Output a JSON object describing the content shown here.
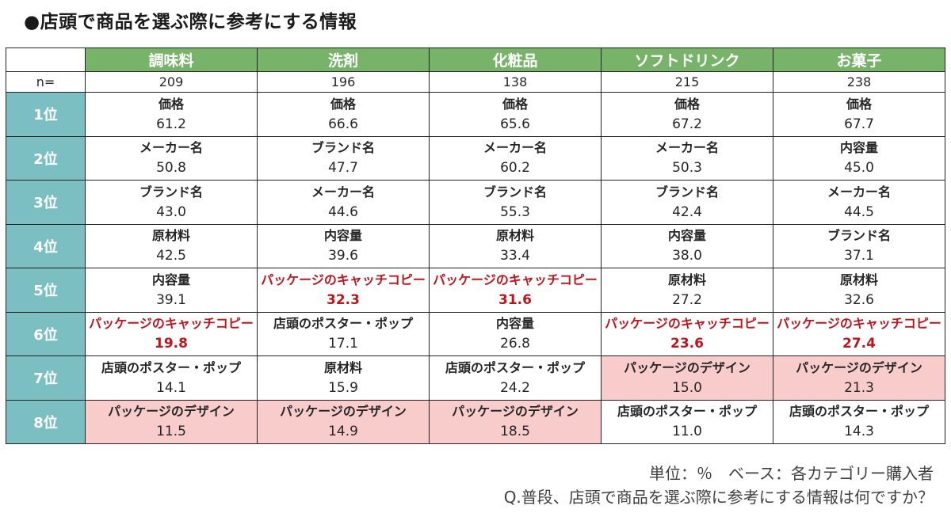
{
  "title": "●店頭で商品を選ぶ際に参考にする情報",
  "notes": {
    "unit": "単位：％　ベース：各カテゴリー購入者",
    "question": "Q.普段、店頭で商品を選ぶ際に参考にする情報は何ですか？"
  },
  "colors": {
    "header_green": "#78b36a",
    "rank_teal": "#7cbfc3",
    "highlight_red": "#c0141d",
    "highlight_pink": "#f9cccc"
  },
  "chart_data": {
    "type": "table",
    "n_label": "n=",
    "columns": [
      {
        "name": "調味料",
        "n": "209",
        "ranks": [
          {
            "item": "価格",
            "value": "61.2"
          },
          {
            "item": "メーカー名",
            "value": "50.8"
          },
          {
            "item": "ブランド名",
            "value": "43.0"
          },
          {
            "item": "原材料",
            "value": "42.5"
          },
          {
            "item": "内容量",
            "value": "39.1"
          },
          {
            "item": "パッケージのキャッチコピー",
            "value": "19.8",
            "style": "red"
          },
          {
            "item": "店頭のポスター・ポップ",
            "value": "14.1"
          },
          {
            "item": "パッケージのデザイン",
            "value": "11.5",
            "style": "pink"
          }
        ]
      },
      {
        "name": "洗剤",
        "n": "196",
        "ranks": [
          {
            "item": "価格",
            "value": "66.6"
          },
          {
            "item": "ブランド名",
            "value": "47.7"
          },
          {
            "item": "メーカー名",
            "value": "44.6"
          },
          {
            "item": "内容量",
            "value": "39.6"
          },
          {
            "item": "パッケージのキャッチコピー",
            "value": "32.3",
            "style": "red"
          },
          {
            "item": "店頭のポスター・ポップ",
            "value": "17.1"
          },
          {
            "item": "原材料",
            "value": "15.9"
          },
          {
            "item": "パッケージのデザイン",
            "value": "14.9",
            "style": "pink"
          }
        ]
      },
      {
        "name": "化粧品",
        "n": "138",
        "ranks": [
          {
            "item": "価格",
            "value": "65.6"
          },
          {
            "item": "メーカー名",
            "value": "60.2"
          },
          {
            "item": "ブランド名",
            "value": "55.3"
          },
          {
            "item": "原材料",
            "value": "33.4"
          },
          {
            "item": "パッケージのキャッチコピー",
            "value": "31.6",
            "style": "red"
          },
          {
            "item": "内容量",
            "value": "26.8"
          },
          {
            "item": "店頭のポスター・ポップ",
            "value": "24.2"
          },
          {
            "item": "パッケージのデザイン",
            "value": "18.5",
            "style": "pink"
          }
        ]
      },
      {
        "name": "ソフトドリンク",
        "n": "215",
        "ranks": [
          {
            "item": "価格",
            "value": "67.2"
          },
          {
            "item": "メーカー名",
            "value": "50.3"
          },
          {
            "item": "ブランド名",
            "value": "42.4"
          },
          {
            "item": "内容量",
            "value": "38.0"
          },
          {
            "item": "原材料",
            "value": "27.2"
          },
          {
            "item": "パッケージのキャッチコピー",
            "value": "23.6",
            "style": "red"
          },
          {
            "item": "パッケージのデザイン",
            "value": "15.0",
            "style": "pink"
          },
          {
            "item": "店頭のポスター・ポップ",
            "value": "11.0"
          }
        ]
      },
      {
        "name": "お菓子",
        "n": "238",
        "ranks": [
          {
            "item": "価格",
            "value": "67.7"
          },
          {
            "item": "内容量",
            "value": "45.0"
          },
          {
            "item": "メーカー名",
            "value": "44.5"
          },
          {
            "item": "ブランド名",
            "value": "37.1"
          },
          {
            "item": "原材料",
            "value": "32.6"
          },
          {
            "item": "パッケージのキャッチコピー",
            "value": "27.4",
            "style": "red"
          },
          {
            "item": "パッケージのデザイン",
            "value": "21.3",
            "style": "pink"
          },
          {
            "item": "店頭のポスター・ポップ",
            "value": "14.3"
          }
        ]
      }
    ],
    "rank_labels": [
      "1位",
      "2位",
      "3位",
      "4位",
      "5位",
      "6位",
      "7位",
      "8位"
    ]
  }
}
